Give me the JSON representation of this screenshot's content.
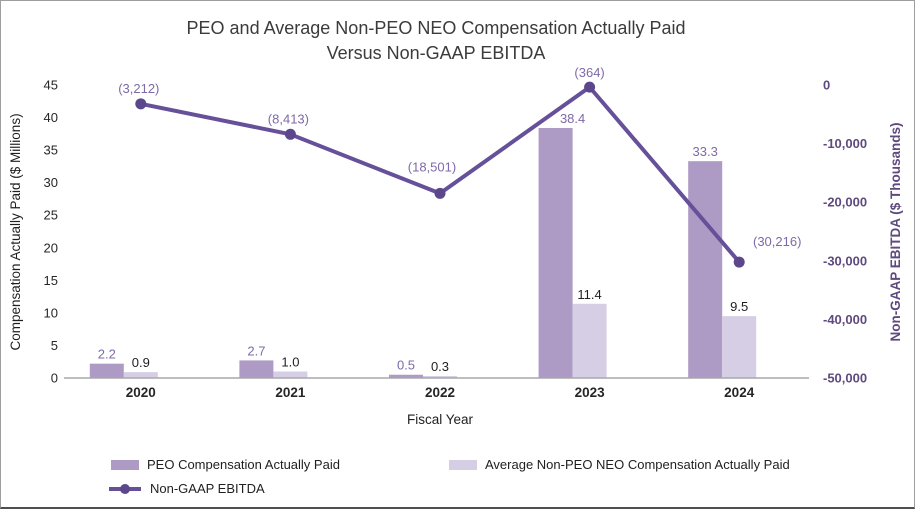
{
  "title": {
    "line1": "PEO and Average Non-PEO NEO Compensation Actually Paid",
    "line2": "Versus Non-GAAP EBITDA"
  },
  "colors": {
    "peo_bar": "#ad9bc5",
    "neo_bar": "#d5cee4",
    "ebitda_line": "#66509a",
    "ebitda_marker": "#5c478c",
    "purple_label": "#7e6aa8",
    "black_label": "#1f1f1f",
    "right_axis": "#5f4a7d",
    "axis_line": "#a8a8a8",
    "tick_text": "#262626"
  },
  "chart_data": {
    "type": "combo-bar-line",
    "categories": [
      "2020",
      "2021",
      "2022",
      "2023",
      "2024"
    ],
    "series": [
      {
        "name": "PEO Compensation Actually Paid",
        "type": "bar",
        "axis": "left",
        "values": [
          2.2,
          2.7,
          0.5,
          38.4,
          33.3
        ],
        "labels": [
          "2.2",
          "2.7",
          "0.5",
          "38.4",
          "33.3"
        ]
      },
      {
        "name": "Average Non-PEO NEO Compensation Actually Paid",
        "type": "bar",
        "axis": "left",
        "values": [
          0.9,
          1.0,
          0.3,
          11.4,
          9.5
        ],
        "labels": [
          "0.9",
          "1.0",
          "0.3",
          "11.4",
          "9.5"
        ]
      },
      {
        "name": "Non-GAAP EBITDA",
        "type": "line",
        "axis": "right",
        "values": [
          -3212,
          -8413,
          -18501,
          -364,
          -30216
        ],
        "labels": [
          "(3,212)",
          "(8,413)",
          "(18,501)",
          "(364)",
          "(30,216)"
        ]
      }
    ],
    "xlabel": "Fiscal Year",
    "ylabel_left": "Compensation Actually Paid ($ Millions)",
    "ylabel_right": "Non-GAAP EBITDA ($ Thousands)",
    "left_axis": {
      "min": 0,
      "max": 45,
      "step": 5,
      "tick_values": [
        0,
        5,
        10,
        15,
        20,
        25,
        30,
        35,
        40,
        45
      ],
      "tick_labels": [
        "0",
        "5",
        "10",
        "15",
        "20",
        "25",
        "30",
        "35",
        "40",
        "45"
      ]
    },
    "right_axis": {
      "min": -50000,
      "max": 0,
      "step": 10000,
      "tick_values": [
        0,
        -10000,
        -20000,
        -30000,
        -40000,
        -50000
      ],
      "tick_labels": [
        "0",
        "-10,000",
        "-20,000",
        "-30,000",
        "-40,000",
        "-50,000"
      ]
    },
    "grid": false,
    "legend_position": "bottom-left"
  },
  "legend": {
    "items": [
      {
        "type": "bar",
        "label": "PEO Compensation Actually Paid"
      },
      {
        "type": "bar",
        "label": "Average Non-PEO NEO Compensation Actually Paid"
      },
      {
        "type": "line",
        "label": "Non-GAAP EBITDA"
      }
    ]
  }
}
